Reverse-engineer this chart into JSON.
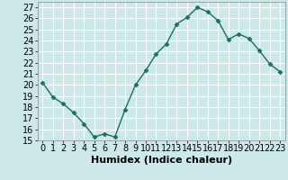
{
  "x": [
    0,
    1,
    2,
    3,
    4,
    5,
    6,
    7,
    8,
    9,
    10,
    11,
    12,
    13,
    14,
    15,
    16,
    17,
    18,
    19,
    20,
    21,
    22,
    23
  ],
  "y": [
    20.2,
    18.9,
    18.3,
    17.5,
    16.5,
    15.3,
    15.6,
    15.3,
    17.8,
    20.0,
    21.3,
    22.8,
    23.7,
    25.5,
    26.1,
    27.0,
    26.6,
    25.8,
    24.1,
    24.6,
    24.2,
    23.1,
    21.9,
    21.2
  ],
  "line_color": "#1a7060",
  "marker": "D",
  "marker_size": 2.5,
  "line_width": 1.0,
  "xlabel": "Humidex (Indice chaleur)",
  "xlim": [
    -0.5,
    23.5
  ],
  "ylim": [
    15,
    27.5
  ],
  "yticks": [
    15,
    16,
    17,
    18,
    19,
    20,
    21,
    22,
    23,
    24,
    25,
    26,
    27
  ],
  "xticks": [
    0,
    1,
    2,
    3,
    4,
    5,
    6,
    7,
    8,
    9,
    10,
    11,
    12,
    13,
    14,
    15,
    16,
    17,
    18,
    19,
    20,
    21,
    22,
    23
  ],
  "bg_color": "#cce8e8",
  "grid_color": "#ffffff",
  "tick_fontsize": 7,
  "xlabel_fontsize": 8
}
